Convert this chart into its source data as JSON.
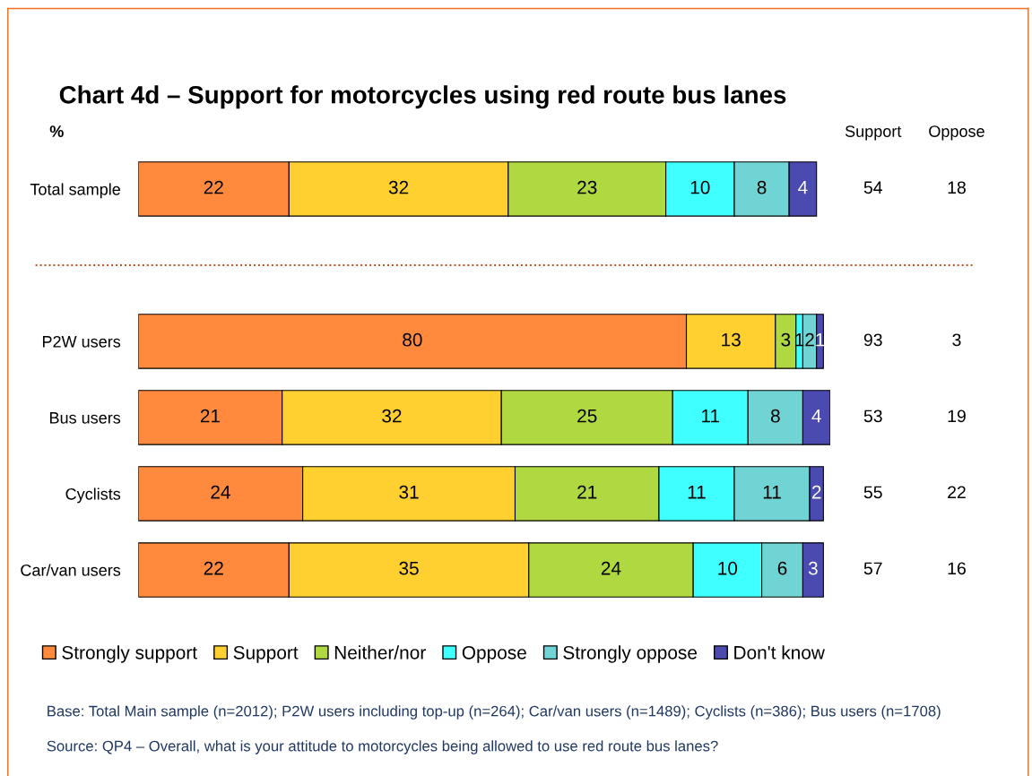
{
  "chart_data": {
    "type": "bar",
    "orientation": "horizontal",
    "stacked": true,
    "title": "Chart 4d – Support for motorcycles using red route bus lanes",
    "ylabel": "%",
    "categories": [
      "Total sample",
      null,
      "P2W users",
      "Bus users",
      "Cyclists",
      "Car/van users"
    ],
    "series": [
      {
        "name": "Strongly support",
        "color": "#ff8a3d",
        "values": [
          22,
          null,
          80,
          21,
          24,
          22
        ]
      },
      {
        "name": "Support",
        "color": "#ffd030",
        "values": [
          32,
          null,
          13,
          32,
          31,
          35
        ]
      },
      {
        "name": "Neither/nor",
        "color": "#b0d840",
        "values": [
          23,
          null,
          3,
          25,
          21,
          24
        ]
      },
      {
        "name": "Oppose",
        "color": "#40ffff",
        "values": [
          10,
          null,
          1,
          11,
          11,
          10
        ]
      },
      {
        "name": "Strongly oppose",
        "color": "#70d4d4",
        "values": [
          8,
          null,
          2,
          8,
          11,
          6
        ]
      },
      {
        "name": "Don't know",
        "color": "#4a4ab0",
        "values": [
          4,
          null,
          1,
          4,
          2,
          3
        ]
      }
    ],
    "xlim": [
      0,
      101
    ],
    "tick_labels": "y",
    "data_labels": true,
    "legend": "bottom",
    "grid": false,
    "annotations": [
      "Support",
      "Oppose",
      "54",
      "18",
      "93",
      "3",
      "53",
      "19",
      "55",
      "22",
      "57",
      "16",
      "Base: Total Main sample (n=2012); P2W users including top-up (n=264); Car/van users (n=1489); Cyclists (n=386); Bus users (n=1708)",
      "Source: QP4 – Overall, what is your attitude to motorcycles being allowed to use red route bus lanes?"
    ]
  }
}
